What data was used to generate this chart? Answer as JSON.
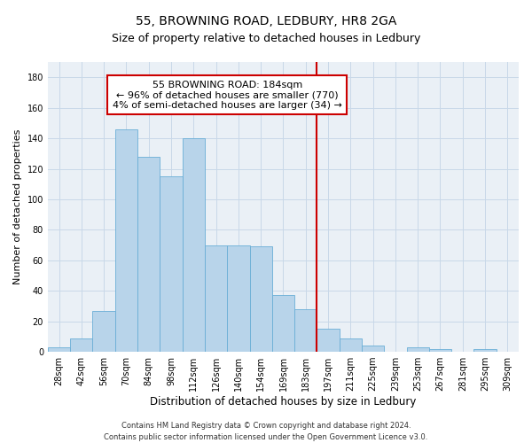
{
  "title": "55, BROWNING ROAD, LEDBURY, HR8 2GA",
  "subtitle": "Size of property relative to detached houses in Ledbury",
  "xlabel": "Distribution of detached houses by size in Ledbury",
  "ylabel": "Number of detached properties",
  "bar_labels": [
    "28sqm",
    "42sqm",
    "56sqm",
    "70sqm",
    "84sqm",
    "98sqm",
    "112sqm",
    "126sqm",
    "140sqm",
    "154sqm",
    "169sqm",
    "183sqm",
    "197sqm",
    "211sqm",
    "225sqm",
    "239sqm",
    "253sqm",
    "267sqm",
    "281sqm",
    "295sqm",
    "309sqm"
  ],
  "bar_heights": [
    3,
    9,
    27,
    146,
    128,
    115,
    140,
    70,
    70,
    69,
    37,
    28,
    15,
    9,
    4,
    0,
    3,
    2,
    0,
    2,
    0
  ],
  "bar_color": "#b8d4ea",
  "bar_edge_color": "#6aaed6",
  "vline_color": "#cc0000",
  "annotation_line1": "55 BROWNING ROAD: 184sqm",
  "annotation_line2": "← 96% of detached houses are smaller (770)",
  "annotation_line3": "4% of semi-detached houses are larger (34) →",
  "annotation_box_color": "#ffffff",
  "annotation_box_edge": "#cc0000",
  "ylim": [
    0,
    190
  ],
  "yticks": [
    0,
    20,
    40,
    60,
    80,
    100,
    120,
    140,
    160,
    180
  ],
  "grid_color": "#c8d8e8",
  "bg_color": "#eaf0f6",
  "footer": "Contains HM Land Registry data © Crown copyright and database right 2024.\nContains public sector information licensed under the Open Government Licence v3.0.",
  "title_fontsize": 10,
  "subtitle_fontsize": 9,
  "xlabel_fontsize": 8.5,
  "ylabel_fontsize": 8,
  "tick_fontsize": 7,
  "annotation_fontsize": 8,
  "footer_fontsize": 6
}
